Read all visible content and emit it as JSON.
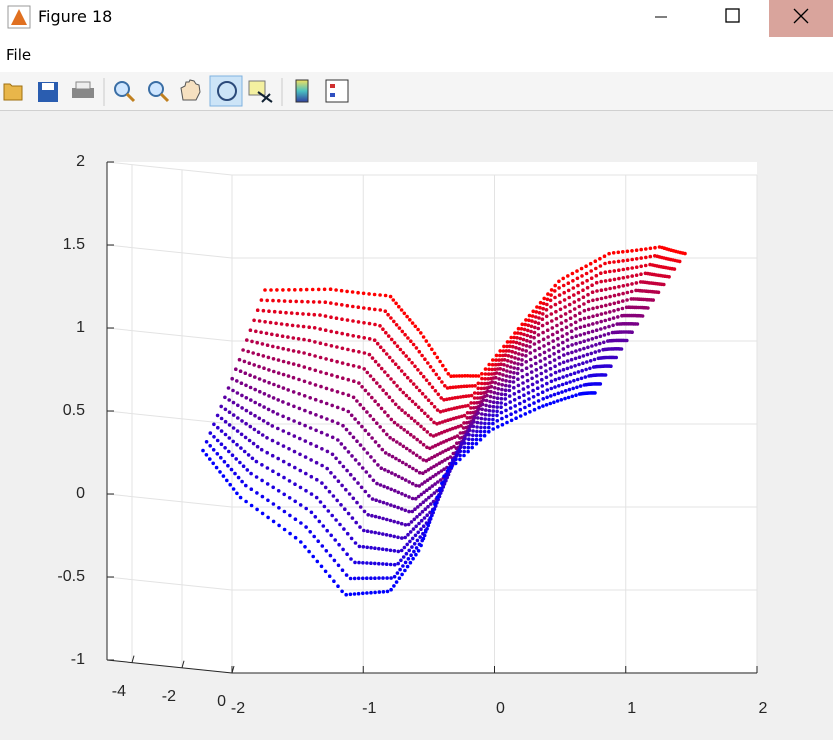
{
  "window": {
    "title": "Figure 18"
  },
  "menu": [
    "File"
  ],
  "chart_data": {
    "type": "scatter3",
    "xlim": [
      -2,
      2
    ],
    "xticks": [
      -2,
      -1,
      0,
      1,
      2
    ],
    "ylim": [
      -5,
      0
    ],
    "yticks": [
      -4,
      -2,
      0
    ],
    "zlim": [
      -1,
      2
    ],
    "zticks": [
      -1,
      -0.5,
      0,
      0.5,
      1,
      1.5,
      2
    ],
    "grid": true
  }
}
